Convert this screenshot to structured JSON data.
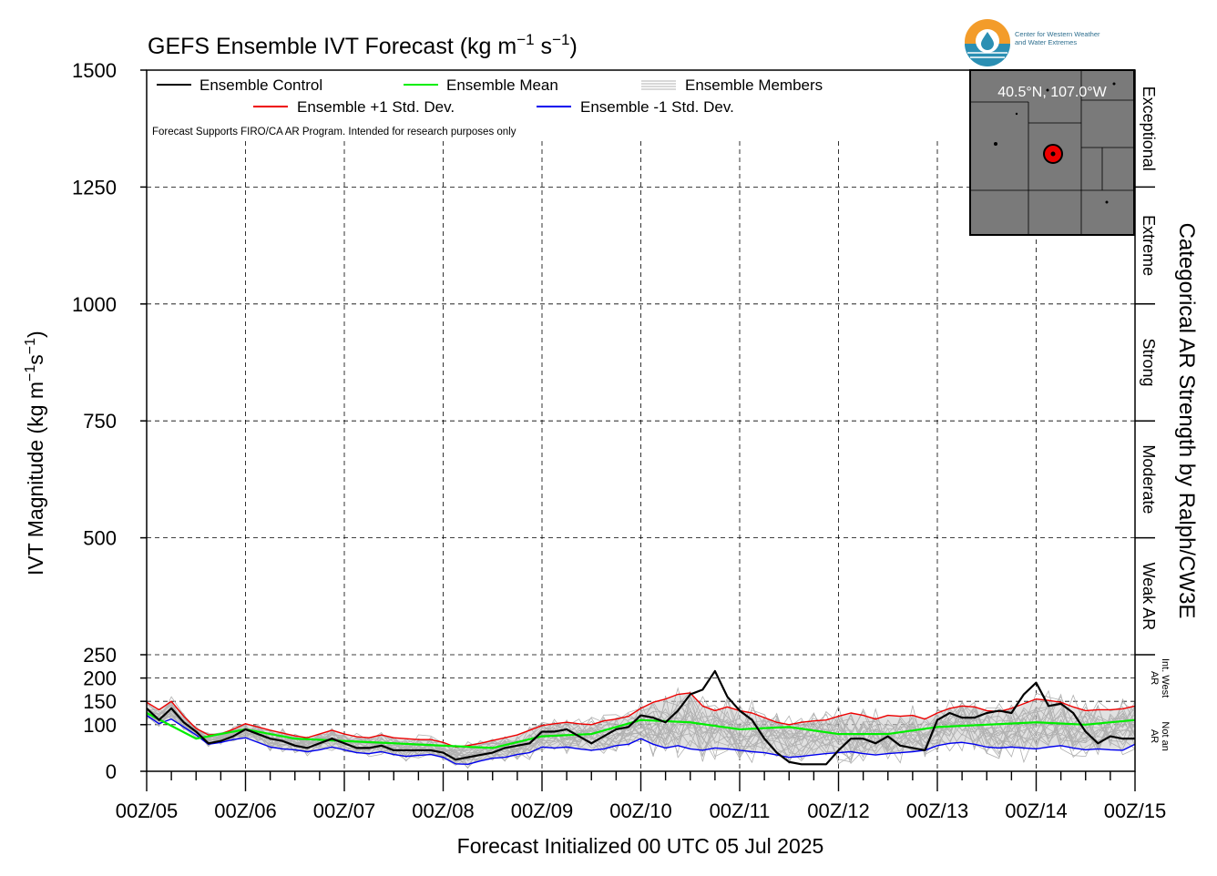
{
  "chart_data": {
    "type": "line",
    "title": "GEFS Ensemble IVT Forecast (kg m",
    "title_units_sup1": "−1",
    "title_units_mid": " s",
    "title_units_sup2": "−1",
    "title_units_end": ")",
    "ylabel": "IVT Magnitude (kg m",
    "ylabel_sup1": "−1",
    "ylabel_mid": "s",
    "ylabel_sup2": "−1",
    "ylabel_end": ")",
    "xlabel": "Forecast Initialized 00 UTC 05 Jul 2025",
    "right_label": "Categorical AR Strength by Ralph/CW3E",
    "y_ticks": [
      0,
      100,
      150,
      200,
      250,
      500,
      750,
      1000,
      1250,
      1500
    ],
    "y_piecewise_scale": "0-250 expanded, 250-1500 compressed",
    "x_tick_labels": [
      "00Z/05",
      "00Z/06",
      "00Z/07",
      "00Z/08",
      "00Z/09",
      "00Z/10",
      "00Z/11",
      "00Z/12",
      "00Z/13",
      "00Z/14",
      "00Z/15"
    ],
    "x_range_hours": [
      0,
      240
    ],
    "categories": [
      {
        "label": "Exceptional",
        "range": [
          1250,
          1500
        ]
      },
      {
        "label": "Extreme",
        "range": [
          1000,
          1250
        ]
      },
      {
        "label": "Strong",
        "range": [
          750,
          1000
        ]
      },
      {
        "label": "Moderate",
        "range": [
          500,
          750
        ]
      },
      {
        "label": "Weak AR",
        "range": [
          250,
          500
        ]
      },
      {
        "label": "Int. West AR",
        "range": [
          150,
          250
        ]
      },
      {
        "label": "Not an AR",
        "range": [
          0,
          150
        ]
      }
    ],
    "legend": {
      "control": "Ensemble Control",
      "mean": "Ensemble Mean",
      "members": "Ensemble Members",
      "plus_std": "Ensemble +1 Std. Dev.",
      "minus_std": "Ensemble -1 Std. Dev."
    },
    "note": "Forecast Supports FIRO/CA AR Program. Intended for research purposes only",
    "inset_location": "40.5°N, 107.0°W",
    "colors": {
      "control": "#000000",
      "mean": "#00ee00",
      "members": "#b0b0b0",
      "plus_std": "#ee0000",
      "minus_std": "#0000ee",
      "band": "#c8c8c8",
      "map": "#7a7a7a"
    },
    "series": [
      {
        "name": "Ensemble Control",
        "x": [
          0,
          3,
          6,
          9,
          12,
          15,
          18,
          21,
          24,
          27,
          30,
          33,
          36,
          39,
          42,
          45,
          48,
          51,
          54,
          57,
          60,
          63,
          66,
          69,
          72,
          75,
          78,
          81,
          84,
          87,
          90,
          93,
          96,
          99,
          102,
          105,
          108,
          111,
          114,
          117,
          120,
          123,
          126,
          129,
          132,
          135,
          138,
          141,
          144,
          147,
          150,
          153,
          156,
          159,
          162,
          165,
          168,
          171,
          174,
          177,
          180,
          183,
          186,
          189,
          192,
          195,
          198,
          201,
          204,
          207,
          210,
          213,
          216,
          219,
          222,
          225,
          228,
          231,
          234,
          237,
          240
        ],
        "values": [
          135,
          110,
          135,
          105,
          85,
          60,
          65,
          75,
          90,
          80,
          70,
          65,
          55,
          50,
          60,
          70,
          60,
          50,
          50,
          55,
          45,
          45,
          45,
          45,
          40,
          25,
          30,
          35,
          40,
          50,
          55,
          60,
          85,
          85,
          90,
          75,
          60,
          75,
          90,
          95,
          120,
          115,
          105,
          130,
          165,
          175,
          215,
          160,
          130,
          110,
          70,
          40,
          20,
          15,
          15,
          15,
          45,
          70,
          70,
          60,
          75,
          55,
          50,
          45,
          110,
          125,
          115,
          115,
          125,
          130,
          125,
          165,
          190,
          140,
          145,
          125,
          85,
          60,
          75,
          70,
          70
        ]
      },
      {
        "name": "Ensemble Mean",
        "x": [
          0,
          12,
          24,
          36,
          48,
          60,
          72,
          84,
          96,
          108,
          120,
          132,
          144,
          156,
          168,
          180,
          192,
          204,
          216,
          228,
          240
        ],
        "values": [
          125,
          70,
          90,
          70,
          65,
          60,
          55,
          50,
          75,
          80,
          110,
          105,
          90,
          95,
          80,
          80,
          95,
          100,
          105,
          100,
          110
        ]
      },
      {
        "name": "Ensemble +1 Std. Dev.",
        "x": [
          0,
          3,
          6,
          9,
          12,
          15,
          18,
          21,
          24,
          27,
          30,
          33,
          36,
          39,
          42,
          45,
          48,
          51,
          54,
          57,
          60,
          63,
          66,
          69,
          72,
          75,
          78,
          81,
          84,
          87,
          90,
          93,
          96,
          99,
          102,
          105,
          108,
          111,
          114,
          117,
          120,
          123,
          126,
          129,
          132,
          135,
          138,
          141,
          144,
          147,
          150,
          153,
          156,
          159,
          162,
          165,
          168,
          171,
          174,
          177,
          180,
          183,
          186,
          189,
          192,
          195,
          198,
          201,
          204,
          207,
          210,
          213,
          216,
          219,
          222,
          225,
          228,
          231,
          234,
          237,
          240
        ],
        "values": [
          148,
          132,
          150,
          118,
          92,
          78,
          80,
          90,
          102,
          95,
          88,
          82,
          76,
          72,
          80,
          88,
          80,
          74,
          72,
          78,
          72,
          70,
          68,
          68,
          62,
          52,
          55,
          60,
          66,
          72,
          78,
          88,
          98,
          102,
          105,
          102,
          100,
          108,
          112,
          118,
          135,
          148,
          155,
          165,
          168,
          140,
          130,
          138,
          130,
          125,
          115,
          105,
          100,
          105,
          108,
          110,
          118,
          125,
          120,
          112,
          120,
          118,
          120,
          112,
          125,
          135,
          140,
          138,
          130,
          128,
          135,
          145,
          155,
          152,
          148,
          138,
          130,
          132,
          132,
          134,
          140
        ]
      },
      {
        "name": "Ensemble -1 Std. Dev.",
        "x": [
          0,
          3,
          6,
          9,
          12,
          15,
          18,
          21,
          24,
          27,
          30,
          33,
          36,
          39,
          42,
          45,
          48,
          51,
          54,
          57,
          60,
          63,
          66,
          69,
          72,
          75,
          78,
          81,
          84,
          87,
          90,
          93,
          96,
          99,
          102,
          105,
          108,
          111,
          114,
          117,
          120,
          123,
          126,
          129,
          132,
          135,
          138,
          141,
          144,
          147,
          150,
          153,
          156,
          159,
          162,
          165,
          168,
          171,
          174,
          177,
          180,
          183,
          186,
          189,
          192,
          195,
          198,
          201,
          204,
          207,
          210,
          213,
          216,
          219,
          222,
          225,
          228,
          231,
          234,
          237,
          240
        ],
        "values": [
          120,
          102,
          112,
          95,
          78,
          58,
          62,
          68,
          72,
          62,
          52,
          48,
          46,
          42,
          46,
          52,
          46,
          40,
          38,
          42,
          36,
          32,
          34,
          36,
          30,
          16,
          15,
          22,
          28,
          30,
          36,
          40,
          52,
          50,
          52,
          48,
          45,
          48,
          55,
          58,
          70,
          58,
          50,
          55,
          48,
          45,
          50,
          48,
          45,
          42,
          40,
          35,
          30,
          32,
          35,
          38,
          40,
          42,
          38,
          35,
          38,
          40,
          42,
          45,
          55,
          60,
          62,
          58,
          52,
          50,
          52,
          50,
          48,
          52,
          55,
          50,
          46,
          48,
          46,
          45,
          58
        ]
      }
    ]
  }
}
